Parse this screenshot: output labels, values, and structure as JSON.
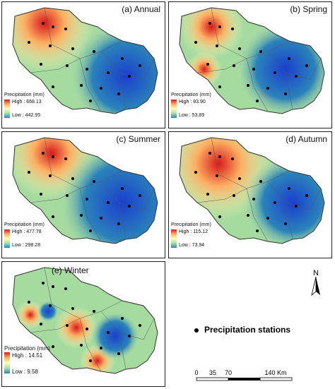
{
  "panels": [
    {
      "id": "annual",
      "title": "(a) Annual",
      "legend_title": "Precipitation (mm)",
      "high": "High : 668.13",
      "low": "Low : 442.95"
    },
    {
      "id": "spring",
      "title": "(b) Spring",
      "legend_title": "Precipitation (mm)",
      "high": "High : 83.90",
      "low": "Low : 53.89"
    },
    {
      "id": "summer",
      "title": "(c) Summer",
      "legend_title": "Precipitation (mm)",
      "high": "High : 477.78",
      "low": "Low : 298.28"
    },
    {
      "id": "autumn",
      "title": "(d) Autumn",
      "legend_title": "Precipitation (mm)",
      "high": "High : 115.12",
      "low": "Low : 73.94"
    },
    {
      "id": "winter",
      "title": "(e) Winter",
      "legend_title": "Precipitation (mm)",
      "high": "High : 14.51",
      "low": "Low : 9.58"
    }
  ],
  "legend": {
    "stations": "Precipitation stations"
  },
  "north_arrow": {
    "label": "N"
  },
  "scale_bar": {
    "ticks": [
      "0",
      "35",
      "70",
      "140 Km"
    ]
  },
  "colors": {
    "high": "#d7191c",
    "mid": "#ffffbf",
    "low": "#2b83ba"
  }
}
